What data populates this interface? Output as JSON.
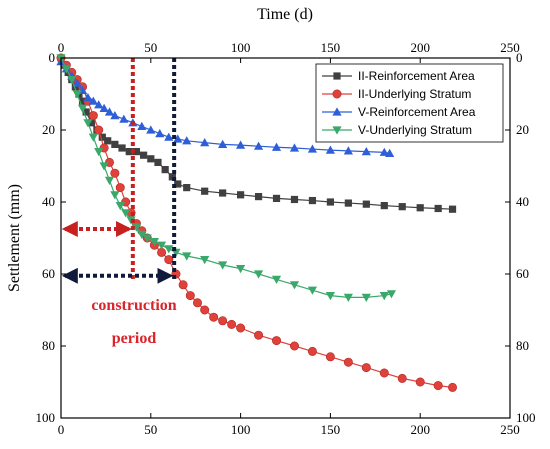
{
  "chart_data": {
    "type": "scatter",
    "title": "",
    "xlabel": "Time (d)",
    "ylabel": "Settlement (mm)",
    "xlim": [
      0,
      250
    ],
    "ylim": [
      0,
      100
    ],
    "y_inverted": true,
    "x_ticks": [
      "0",
      "50",
      "100",
      "150",
      "200",
      "250"
    ],
    "y_ticks": [
      "0",
      "20",
      "40",
      "60",
      "80",
      "100"
    ],
    "grid": false,
    "mirrored_axes": true,
    "legend_position": "top-right",
    "series": [
      {
        "name": "II-Reinforcement Area",
        "color": "#404040",
        "marker": "square",
        "points": [
          [
            0,
            0
          ],
          [
            2,
            2
          ],
          [
            4,
            4
          ],
          [
            6,
            6
          ],
          [
            8,
            8
          ],
          [
            10,
            10
          ],
          [
            12,
            12
          ],
          [
            14,
            15
          ],
          [
            17,
            18
          ],
          [
            20,
            20
          ],
          [
            23,
            22
          ],
          [
            26,
            23
          ],
          [
            30,
            24
          ],
          [
            34,
            25
          ],
          [
            38,
            26
          ],
          [
            42,
            26
          ],
          [
            46,
            27
          ],
          [
            50,
            28
          ],
          [
            54,
            29
          ],
          [
            58,
            31
          ],
          [
            62,
            33
          ],
          [
            65,
            35
          ],
          [
            70,
            36
          ],
          [
            80,
            37
          ],
          [
            90,
            37.5
          ],
          [
            100,
            38
          ],
          [
            110,
            38.5
          ],
          [
            120,
            39
          ],
          [
            130,
            39.3
          ],
          [
            140,
            39.6
          ],
          [
            150,
            40
          ],
          [
            160,
            40.3
          ],
          [
            170,
            40.6
          ],
          [
            180,
            41
          ],
          [
            190,
            41.3
          ],
          [
            200,
            41.6
          ],
          [
            210,
            41.8
          ],
          [
            218,
            42
          ]
        ]
      },
      {
        "name": "II-Underlying Stratum",
        "color": "#e0413a",
        "marker": "circle",
        "points": [
          [
            0,
            0
          ],
          [
            3,
            2
          ],
          [
            6,
            4
          ],
          [
            9,
            6
          ],
          [
            12,
            8
          ],
          [
            15,
            12
          ],
          [
            18,
            16
          ],
          [
            21,
            20
          ],
          [
            24,
            25
          ],
          [
            27,
            29
          ],
          [
            30,
            32
          ],
          [
            33,
            36
          ],
          [
            36,
            40
          ],
          [
            39,
            43
          ],
          [
            42,
            46
          ],
          [
            45,
            48
          ],
          [
            48,
            50
          ],
          [
            52,
            52
          ],
          [
            56,
            54
          ],
          [
            60,
            56
          ],
          [
            64,
            60
          ],
          [
            68,
            63
          ],
          [
            72,
            66
          ],
          [
            76,
            68
          ],
          [
            80,
            70
          ],
          [
            85,
            72
          ],
          [
            90,
            73
          ],
          [
            95,
            74
          ],
          [
            100,
            75
          ],
          [
            110,
            77
          ],
          [
            120,
            78.5
          ],
          [
            130,
            80
          ],
          [
            140,
            81.5
          ],
          [
            150,
            83
          ],
          [
            160,
            84.5
          ],
          [
            170,
            86
          ],
          [
            180,
            87.5
          ],
          [
            190,
            89
          ],
          [
            200,
            90
          ],
          [
            210,
            91
          ],
          [
            218,
            91.5
          ]
        ]
      },
      {
        "name": "V-Reinforcement Area",
        "color": "#2f5fd8",
        "marker": "triangle-up",
        "points": [
          [
            0,
            1
          ],
          [
            3,
            3
          ],
          [
            6,
            5
          ],
          [
            9,
            7
          ],
          [
            12,
            9
          ],
          [
            15,
            11
          ],
          [
            18,
            12
          ],
          [
            21,
            13
          ],
          [
            24,
            14
          ],
          [
            27,
            15
          ],
          [
            30,
            16
          ],
          [
            35,
            17
          ],
          [
            40,
            18
          ],
          [
            45,
            19
          ],
          [
            50,
            20
          ],
          [
            55,
            21
          ],
          [
            60,
            22
          ],
          [
            65,
            22.5
          ],
          [
            70,
            23
          ],
          [
            80,
            23.5
          ],
          [
            90,
            24
          ],
          [
            100,
            24.2
          ],
          [
            110,
            24.5
          ],
          [
            120,
            24.8
          ],
          [
            130,
            25
          ],
          [
            140,
            25.3
          ],
          [
            150,
            25.6
          ],
          [
            160,
            25.8
          ],
          [
            170,
            26
          ],
          [
            180,
            26.2
          ],
          [
            183,
            26.5
          ]
        ]
      },
      {
        "name": "V-Underlying Stratum",
        "color": "#3aa86b",
        "marker": "triangle-down",
        "points": [
          [
            0,
            0
          ],
          [
            3,
            3
          ],
          [
            6,
            6
          ],
          [
            9,
            10
          ],
          [
            12,
            14
          ],
          [
            15,
            18
          ],
          [
            18,
            22
          ],
          [
            21,
            26
          ],
          [
            24,
            30
          ],
          [
            27,
            34
          ],
          [
            30,
            38
          ],
          [
            33,
            41
          ],
          [
            36,
            43
          ],
          [
            39,
            45
          ],
          [
            42,
            47
          ],
          [
            45,
            49
          ],
          [
            48,
            50
          ],
          [
            52,
            51
          ],
          [
            56,
            52
          ],
          [
            60,
            53
          ],
          [
            64,
            54
          ],
          [
            70,
            55
          ],
          [
            80,
            56
          ],
          [
            90,
            57.5
          ],
          [
            100,
            58.5
          ],
          [
            110,
            60
          ],
          [
            120,
            61.5
          ],
          [
            130,
            63
          ],
          [
            140,
            64.5
          ],
          [
            150,
            66
          ],
          [
            160,
            66.5
          ],
          [
            170,
            66.5
          ],
          [
            180,
            66
          ],
          [
            184,
            65.5
          ]
        ]
      }
    ],
    "annotations": {
      "construction_label": "construction",
      "period_label": "period",
      "vlines": [
        {
          "x": 40,
          "color": "#c8201f"
        },
        {
          "x": 63,
          "color": "#101a3a"
        }
      ],
      "arrows": [
        {
          "x0": 0,
          "x1": 40,
          "y": 47.5,
          "color": "#c8201f"
        },
        {
          "x0": 0,
          "x1": 63,
          "y": 60.5,
          "color": "#101a3a"
        }
      ]
    }
  }
}
